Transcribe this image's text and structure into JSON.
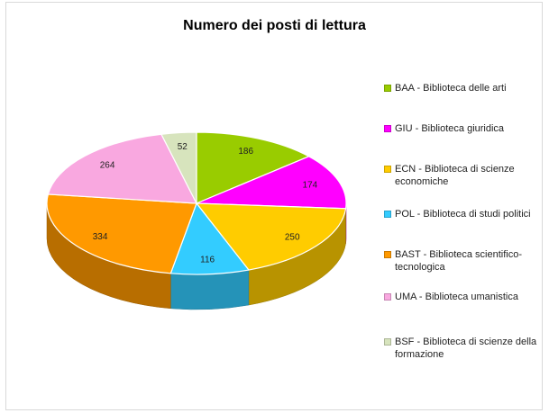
{
  "chart_data": {
    "type": "pie",
    "title": "Numero dei posti di lettura",
    "categories": [
      "BAA - Biblioteca delle arti",
      "GIU - Biblioteca giuridica",
      "ECN - Biblioteca di scienze economiche",
      "POL - Biblioteca di studi politici",
      "BAST - Biblioteca scientifico-tecnologica",
      "UMA - Biblioteca umanistica",
      "BSF - Biblioteca di scienze della formazione"
    ],
    "values": [
      186,
      174,
      250,
      116,
      334,
      264,
      52
    ],
    "colors": [
      "#99cc00",
      "#ff00ff",
      "#ffcc00",
      "#33ccff",
      "#ff9900",
      "#f9a8e0",
      "#d7e4bd"
    ],
    "legend": "right"
  }
}
